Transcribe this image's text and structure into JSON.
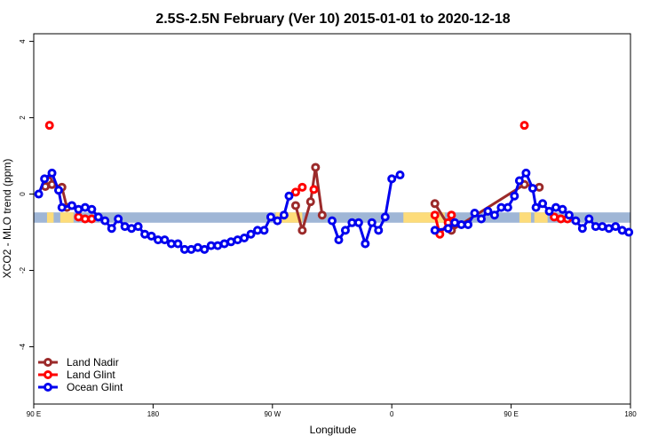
{
  "colors": {
    "land_nadir": "#9b2a2a",
    "land_glint": "#ff0000",
    "ocean_glint": "#0000ee",
    "band_ocean": "#9fb6d6",
    "band_land": "#fddc7a"
  },
  "chart_data": {
    "type": "line",
    "title": "2.5S-2.5N February (Ver 10)   2015-01-01 to 2020-12-18",
    "xlabel": "Longitude",
    "ylabel": "XCO2 - MLO trend (ppm)",
    "xlim": [
      0,
      360
    ],
    "ylim": [
      -5.5,
      4.2
    ],
    "x_ticks": [
      {
        "value": 0,
        "label": "90 E"
      },
      {
        "value": 72,
        "label": "180"
      },
      {
        "value": 144,
        "label": "90 W"
      },
      {
        "value": 216,
        "label": "0"
      },
      {
        "value": 288,
        "label": "90 E"
      },
      {
        "value": 360,
        "label": "180"
      }
    ],
    "y_ticks": [
      {
        "value": -4,
        "label": "-4"
      },
      {
        "value": -2,
        "label": "-2"
      },
      {
        "value": 0,
        "label": "0"
      },
      {
        "value": 2,
        "label": "2"
      },
      {
        "value": 4,
        "label": "4"
      }
    ],
    "band": {
      "y_range": [
        -0.75,
        -0.48
      ],
      "land_spans": [
        [
          8,
          12
        ],
        [
          16,
          24
        ],
        [
          146,
          162
        ],
        [
          223,
          248
        ],
        [
          293,
          300
        ],
        [
          302,
          310
        ]
      ]
    },
    "legend_position": "bottom-left",
    "series": [
      {
        "name": "Land Nadir",
        "color_key": "land_nadir",
        "segments": [
          [
            [
              7,
              0.2
            ],
            [
              9,
              0.35
            ],
            [
              11,
              0.25
            ],
            [
              17,
              0.18
            ],
            [
              20,
              -0.35
            ]
          ],
          [
            [
              158,
              -0.3
            ],
            [
              162,
              -0.95
            ],
            [
              167,
              -0.2
            ],
            [
              170,
              0.7
            ],
            [
              174,
              -0.55
            ]
          ],
          [
            [
              242,
              -0.25
            ],
            [
              252,
              -0.95
            ],
            [
              296,
              0.25
            ],
            [
              305,
              0.18
            ]
          ]
        ]
      },
      {
        "name": "Land Glint",
        "color_key": "land_glint",
        "points": [
          [
            9.5,
            1.8
          ],
          [
            27,
            -0.6
          ],
          [
            31,
            -0.65
          ],
          [
            35,
            -0.65
          ],
          [
            158,
            0.05
          ],
          [
            162,
            0.18
          ],
          [
            169,
            0.12
          ],
          [
            242,
            -0.55
          ],
          [
            245,
            -1.05
          ],
          [
            250,
            -0.75
          ],
          [
            252,
            -0.55
          ],
          [
            296,
            1.8
          ],
          [
            314,
            -0.6
          ],
          [
            318,
            -0.65
          ],
          [
            322,
            -0.65
          ]
        ],
        "segments": [
          [
            [
              242,
              -0.55
            ],
            [
              245,
              -1.05
            ],
            [
              250,
              -0.75
            ],
            [
              252,
              -0.55
            ]
          ]
        ]
      },
      {
        "name": "Ocean Glint",
        "color_key": "ocean_glint",
        "segments": [
          [
            [
              3,
              0
            ],
            [
              6.5,
              0.4
            ],
            [
              11,
              0.55
            ],
            [
              15,
              0.1
            ],
            [
              17,
              -0.35
            ],
            [
              23,
              -0.3
            ],
            [
              27,
              -0.4
            ],
            [
              31,
              -0.35
            ],
            [
              35,
              -0.4
            ],
            [
              39,
              -0.6
            ],
            [
              43,
              -0.7
            ],
            [
              47,
              -0.9
            ],
            [
              51,
              -0.65
            ],
            [
              55,
              -0.85
            ],
            [
              59,
              -0.9
            ],
            [
              63,
              -0.85
            ],
            [
              67,
              -1.05
            ],
            [
              71,
              -1.1
            ],
            [
              75,
              -1.2
            ],
            [
              79,
              -1.2
            ],
            [
              83,
              -1.3
            ],
            [
              87,
              -1.3
            ],
            [
              91,
              -1.45
            ],
            [
              95,
              -1.45
            ],
            [
              99,
              -1.4
            ],
            [
              103,
              -1.45
            ],
            [
              107,
              -1.35
            ],
            [
              111,
              -1.35
            ],
            [
              115,
              -1.3
            ],
            [
              119,
              -1.25
            ],
            [
              123,
              -1.2
            ],
            [
              127,
              -1.15
            ],
            [
              131,
              -1.05
            ],
            [
              135,
              -0.95
            ],
            [
              139,
              -0.95
            ],
            [
              143,
              -0.6
            ],
            [
              147,
              -0.7
            ],
            [
              151,
              -0.55
            ],
            [
              154,
              -0.05
            ]
          ],
          [
            [
              180,
              -0.7
            ],
            [
              184,
              -1.2
            ],
            [
              188,
              -0.95
            ],
            [
              192,
              -0.75
            ],
            [
              196,
              -0.75
            ],
            [
              200,
              -1.3
            ],
            [
              204,
              -0.75
            ],
            [
              208,
              -0.95
            ],
            [
              212,
              -0.6
            ],
            [
              216,
              0.4
            ],
            [
              221,
              0.5
            ]
          ],
          [
            [
              242,
              -0.95
            ],
            [
              250,
              -0.9
            ],
            [
              254,
              -0.75
            ],
            [
              258,
              -0.8
            ],
            [
              262,
              -0.8
            ],
            [
              266,
              -0.5
            ],
            [
              270,
              -0.65
            ],
            [
              274,
              -0.45
            ],
            [
              278,
              -0.55
            ],
            [
              282,
              -0.35
            ],
            [
              286,
              -0.35
            ],
            [
              290,
              -0.05
            ],
            [
              293,
              0.35
            ],
            [
              297,
              0.55
            ],
            [
              301,
              0.15
            ],
            [
              303,
              -0.35
            ],
            [
              307,
              -0.25
            ],
            [
              311,
              -0.45
            ],
            [
              315,
              -0.35
            ],
            [
              319,
              -0.4
            ],
            [
              323,
              -0.55
            ],
            [
              327,
              -0.7
            ],
            [
              331,
              -0.9
            ],
            [
              335,
              -0.65
            ],
            [
              339,
              -0.85
            ],
            [
              343,
              -0.85
            ],
            [
              347,
              -0.9
            ],
            [
              351,
              -0.85
            ],
            [
              355,
              -0.95
            ],
            [
              359,
              -1.0
            ]
          ]
        ]
      }
    ]
  }
}
